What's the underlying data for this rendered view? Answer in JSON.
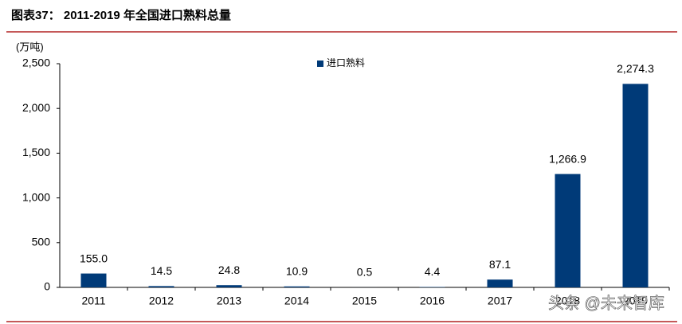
{
  "chart_data": {
    "type": "bar",
    "title": "图表37： 2011-2019 年全国进口熟料总量",
    "y_unit": "(万吨)",
    "categories": [
      "2011",
      "2012",
      "2013",
      "2014",
      "2015",
      "2016",
      "2017",
      "2018",
      "2019"
    ],
    "series": [
      {
        "name": "进口熟料",
        "color": "#003a78",
        "values": [
          155.0,
          14.5,
          24.8,
          10.9,
          0.5,
          4.4,
          87.1,
          1266.9,
          2274.3
        ],
        "value_labels": [
          "155.0",
          "14.5",
          "24.8",
          "10.9",
          "0.5",
          "4.4",
          "87.1",
          "1,266.9",
          "2,274.3"
        ]
      }
    ],
    "ylim": [
      0,
      2500
    ],
    "yticks": [
      0,
      500,
      {
        "value": 1000,
        "label": "1,000"
      },
      {
        "value": 1500,
        "label": "1,500"
      },
      {
        "value": 2000,
        "label": "2,000"
      },
      {
        "value": 2500,
        "label": "2,500"
      }
    ],
    "grid": false,
    "legend": "top",
    "watermark": "头条 @未来智库"
  }
}
